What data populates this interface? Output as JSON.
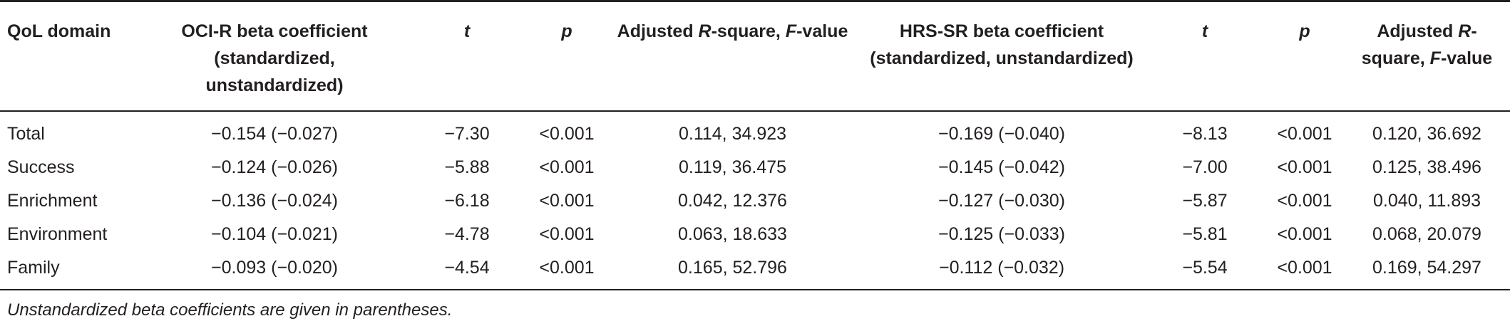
{
  "table": {
    "headers": [
      {
        "parts": [
          {
            "text": "QoL domain"
          }
        ]
      },
      {
        "parts": [
          {
            "text": "OCI-R beta coefficient (standardized, unstandardized)"
          }
        ]
      },
      {
        "parts": [
          {
            "text": "t",
            "italic": true
          }
        ]
      },
      {
        "parts": [
          {
            "text": "p",
            "italic": true
          }
        ]
      },
      {
        "parts": [
          {
            "text": "Adjusted "
          },
          {
            "text": "R",
            "italic": true
          },
          {
            "text": "-square, "
          },
          {
            "text": "F",
            "italic": true
          },
          {
            "text": "-value"
          }
        ]
      },
      {
        "parts": [
          {
            "text": "HRS-SR beta coefficient (standardized, unstandardized)"
          }
        ]
      },
      {
        "parts": [
          {
            "text": "t",
            "italic": true
          }
        ]
      },
      {
        "parts": [
          {
            "text": "p",
            "italic": true
          }
        ]
      },
      {
        "parts": [
          {
            "text": "Adjusted "
          },
          {
            "text": "R",
            "italic": true
          },
          {
            "text": "-square, "
          },
          {
            "text": "F",
            "italic": true
          },
          {
            "text": "-value"
          }
        ]
      }
    ],
    "rows": [
      [
        "Total",
        "−0.154 (−0.027)",
        "−7.30",
        "<0.001",
        "0.114, 34.923",
        "−0.169 (−0.040)",
        "−8.13",
        "<0.001",
        "0.120, 36.692"
      ],
      [
        "Success",
        "−0.124 (−0.026)",
        "−5.88",
        "<0.001",
        "0.119, 36.475",
        "−0.145 (−0.042)",
        "−7.00",
        "<0.001",
        "0.125, 38.496"
      ],
      [
        "Enrichment",
        "−0.136 (−0.024)",
        "−6.18",
        "<0.001",
        "0.042, 12.376",
        "−0.127 (−0.030)",
        "−5.87",
        "<0.001",
        "0.040, 11.893"
      ],
      [
        "Environment",
        "−0.104 (−0.021)",
        "−4.78",
        "<0.001",
        "0.063, 18.633",
        "−0.125 (−0.033)",
        "−5.81",
        "<0.001",
        "0.068, 20.079"
      ],
      [
        "Family",
        "−0.093 (−0.020)",
        "−4.54",
        "<0.001",
        "0.165, 52.796",
        "−0.112 (−0.032)",
        "−5.54",
        "<0.001",
        "0.169, 54.297"
      ]
    ]
  },
  "footnote": "Unstandardized beta coefficients are given in parentheses."
}
